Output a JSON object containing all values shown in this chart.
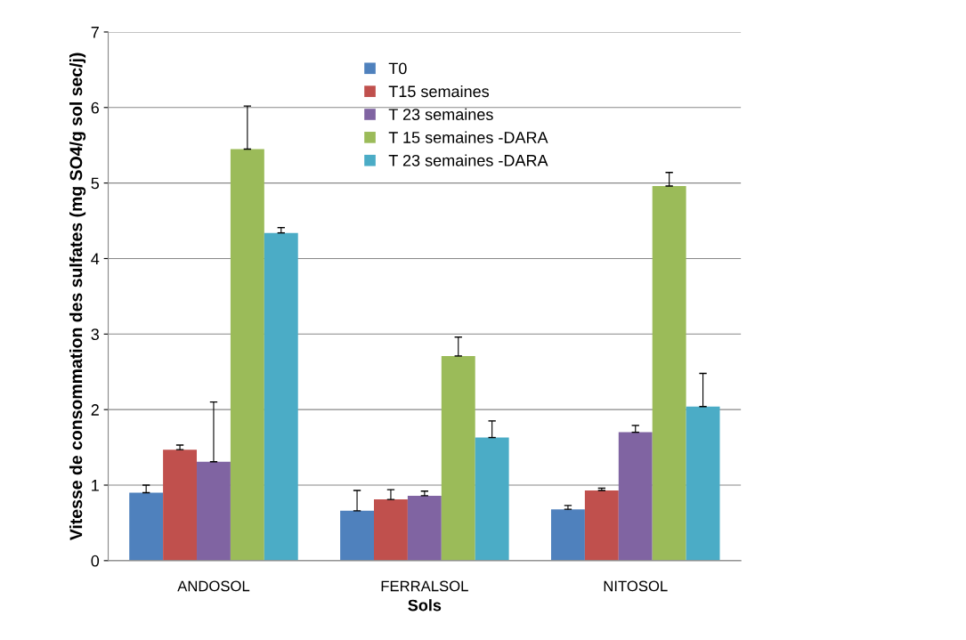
{
  "chart_data": {
    "type": "bar",
    "xlabel": "Sols",
    "ylabel": "Vitesse de consommation des sulfates (mg SO4/g sol sec/j)",
    "categories": [
      "ANDOSOL",
      "FERRALSOL",
      "NITOSOL"
    ],
    "series": [
      {
        "name": "T0",
        "color": "#4f81bd",
        "values": [
          0.9,
          0.66,
          0.68
        ],
        "errors": [
          [
            0.9,
            1.0
          ],
          [
            0.66,
            0.93
          ],
          [
            0.68,
            0.73
          ]
        ]
      },
      {
        "name": "T15 semaines",
        "color": "#c0504d",
        "values": [
          1.47,
          0.81,
          0.93
        ],
        "errors": [
          [
            1.47,
            1.53
          ],
          [
            0.81,
            0.94
          ],
          [
            0.93,
            0.96
          ]
        ]
      },
      {
        "name": "T 23 semaines",
        "color": "#8064a2",
        "values": [
          1.31,
          0.86,
          1.7
        ],
        "errors": [
          [
            1.31,
            2.1
          ],
          [
            0.86,
            0.92
          ],
          [
            1.7,
            1.79
          ]
        ]
      },
      {
        "name": "T 15 semaines -DARA",
        "color": "#9bbb59",
        "values": [
          5.45,
          2.71,
          4.96
        ],
        "errors": [
          [
            5.45,
            6.02
          ],
          [
            2.71,
            2.96
          ],
          [
            4.96,
            5.14
          ]
        ]
      },
      {
        "name": "T 23 semaines -DARA",
        "color": "#4bacc6",
        "values": [
          4.34,
          1.63,
          2.04
        ],
        "errors": [
          [
            4.34,
            4.41
          ],
          [
            1.63,
            1.85
          ],
          [
            2.04,
            2.48
          ]
        ]
      }
    ],
    "ylim": [
      0,
      7
    ],
    "yticks": [
      0,
      1,
      2,
      3,
      4,
      5,
      6,
      7
    ],
    "grid": "y",
    "legend": "top"
  }
}
